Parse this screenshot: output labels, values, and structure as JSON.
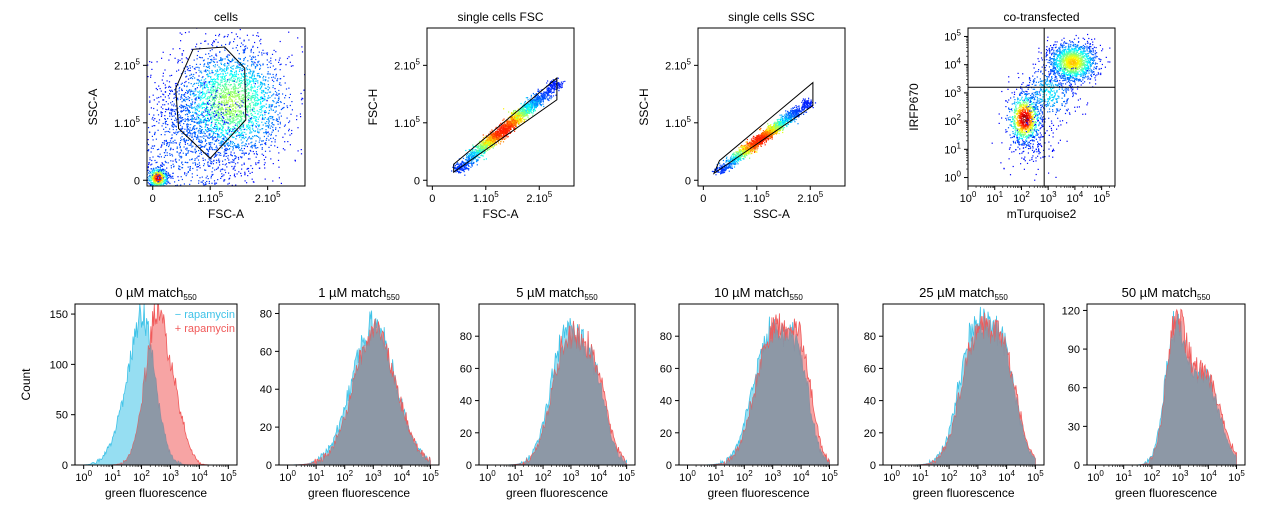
{
  "chart_data": [
    {
      "id": "cells",
      "type": "scatter",
      "title": "cells",
      "xlabel": "FSC-A",
      "ylabel": "SSC-A",
      "xlim": [
        -10000,
        265000
      ],
      "ylim": [
        -10000,
        265000
      ],
      "xticks": [
        {
          "v": 0,
          "t": "0"
        },
        {
          "v": 100000,
          "t": "1.10",
          "s": "5"
        },
        {
          "v": 200000,
          "t": "2.10",
          "s": "5"
        }
      ],
      "yticks": [
        {
          "v": 0,
          "t": "0"
        },
        {
          "v": 100000,
          "t": "1.10",
          "s": "5"
        },
        {
          "v": 200000,
          "t": "2.10",
          "s": "5"
        }
      ],
      "clusters": [
        {
          "cx": 135000,
          "cy": 135000,
          "sx": 50000,
          "sy": 50000,
          "n": 2600,
          "dense": 0.45
        },
        {
          "cx": 8000,
          "cy": 5000,
          "sx": 9000,
          "sy": 9000,
          "n": 500,
          "dense": 0.85
        },
        {
          "cx": 60000,
          "cy": 60000,
          "sx": 60000,
          "sy": 70000,
          "n": 1200,
          "dense": 0.1
        }
      ],
      "gate": [
        [
          40000,
          160000
        ],
        [
          70000,
          228000
        ],
        [
          125000,
          232000
        ],
        [
          160000,
          195000
        ],
        [
          162000,
          105000
        ],
        [
          100000,
          38000
        ],
        [
          45000,
          90000
        ]
      ]
    },
    {
      "id": "single-fsc",
      "type": "scatter",
      "title": "single cells FSC",
      "xlabel": "FSC-A",
      "ylabel": "FSC-H",
      "xlim": [
        -10000,
        265000
      ],
      "ylim": [
        -10000,
        265000
      ],
      "xticks": [
        {
          "v": 0,
          "t": "0"
        },
        {
          "v": 100000,
          "t": "1.10",
          "s": "5"
        },
        {
          "v": 200000,
          "t": "2.10",
          "s": "5"
        }
      ],
      "yticks": [
        {
          "v": 0,
          "t": "0"
        },
        {
          "v": 100000,
          "t": "1.10",
          "s": "5"
        },
        {
          "v": 200000,
          "t": "2.10",
          "s": "5"
        }
      ],
      "diagonal": {
        "x0": 50000,
        "x1": 230000,
        "y0": 22000,
        "y1": 168000,
        "spread": 7000,
        "n": 2200
      },
      "gate": [
        [
          40000,
          28000
        ],
        [
          233000,
          178000
        ],
        [
          233000,
          140000
        ],
        [
          40000,
          14000
        ]
      ]
    },
    {
      "id": "single-ssc",
      "type": "scatter",
      "title": "single cells SSC",
      "xlabel": "SSC-A",
      "ylabel": "SSC-H",
      "xlim": [
        -10000,
        265000
      ],
      "ylim": [
        -10000,
        265000
      ],
      "xticks": [
        {
          "v": 0,
          "t": "0"
        },
        {
          "v": 100000,
          "t": "1.10",
          "s": "5"
        },
        {
          "v": 200000,
          "t": "2.10",
          "s": "5"
        }
      ],
      "yticks": [
        {
          "v": 0,
          "t": "0"
        },
        {
          "v": 100000,
          "t": "1.10",
          "s": "5"
        },
        {
          "v": 200000,
          "t": "2.10",
          "s": "5"
        }
      ],
      "diagonal": {
        "x0": 30000,
        "x1": 195000,
        "y0": 18000,
        "y1": 135000,
        "spread": 6000,
        "n": 1800
      },
      "gate": [
        [
          20000,
          12000
        ],
        [
          205000,
          130000
        ],
        [
          205000,
          170000
        ],
        [
          30000,
          34000
        ]
      ]
    },
    {
      "id": "co-transfected",
      "type": "scatter",
      "title": "co-transfected",
      "xlabel": "mTurquoise2",
      "ylabel": "IRFP670",
      "xscale": "log",
      "yscale": "log",
      "xlim": [
        0,
        5.5
      ],
      "ylim": [
        -0.3,
        5.3
      ],
      "xticks": [
        {
          "v": 0,
          "t": "10",
          "s": "0"
        },
        {
          "v": 1,
          "t": "10",
          "s": "1"
        },
        {
          "v": 2,
          "t": "10",
          "s": "2"
        },
        {
          "v": 3,
          "t": "10",
          "s": "3"
        },
        {
          "v": 4,
          "t": "10",
          "s": "4"
        },
        {
          "v": 5,
          "t": "10",
          "s": "5"
        }
      ],
      "yticks": [
        {
          "v": 0,
          "t": "10",
          "s": "0"
        },
        {
          "v": 1,
          "t": "10",
          "s": "1"
        },
        {
          "v": 2,
          "t": "10",
          "s": "2"
        },
        {
          "v": 3,
          "t": "10",
          "s": "3"
        },
        {
          "v": 4,
          "t": "10",
          "s": "4"
        },
        {
          "v": 5,
          "t": "10",
          "s": "5"
        }
      ],
      "clusters": [
        {
          "cx": 2.1,
          "cy": 2.1,
          "sx": 0.3,
          "sy": 0.45,
          "n": 900,
          "dense": 0.9
        },
        {
          "cx": 3.9,
          "cy": 4.1,
          "sx": 0.45,
          "sy": 0.35,
          "n": 1400,
          "dense": 0.6
        },
        {
          "cx": 3.0,
          "cy": 3.0,
          "sx": 0.5,
          "sy": 0.5,
          "n": 400,
          "dense": 0.25
        },
        {
          "cx": 2.4,
          "cy": 1.2,
          "sx": 0.5,
          "sy": 0.5,
          "n": 150,
          "dense": 0.05
        }
      ],
      "quadrant": {
        "x": 2.85,
        "y": 3.2
      }
    },
    {
      "id": "hist-0",
      "type": "area",
      "title": "0 µM match",
      "title_sub": "550",
      "xlabel": "green fluorescence",
      "ylabel": "Count",
      "xscale": "log",
      "xlim": [
        -0.3,
        5.3
      ],
      "ylim": [
        0,
        160
      ],
      "xticks": [
        {
          "v": 0,
          "t": "10",
          "s": "0"
        },
        {
          "v": 1,
          "t": "10",
          "s": "1"
        },
        {
          "v": 2,
          "t": "10",
          "s": "2"
        },
        {
          "v": 3,
          "t": "10",
          "s": "3"
        },
        {
          "v": 4,
          "t": "10",
          "s": "4"
        },
        {
          "v": 5,
          "t": "10",
          "s": "5"
        }
      ],
      "yticks": [
        {
          "v": 0,
          "t": "0"
        },
        {
          "v": 50,
          "t": "50"
        },
        {
          "v": 100,
          "t": "100"
        },
        {
          "v": 150,
          "t": "150"
        }
      ],
      "legend": {
        "minus": "− rapamycin",
        "plus": "+ rapamycin"
      },
      "series": [
        {
          "name": "− rapamycin",
          "color": "#3fc3e8",
          "peaks": [
            {
              "mu": 2.05,
              "sig": 0.42,
              "h": 145
            },
            {
              "mu": 1.3,
              "sig": 0.4,
              "h": 28
            }
          ]
        },
        {
          "name": "+ rapamycin",
          "color": "#f05a5a",
          "peaks": [
            {
              "mu": 2.55,
              "sig": 0.42,
              "h": 150
            },
            {
              "mu": 3.3,
              "sig": 0.3,
              "h": 30
            }
          ]
        }
      ]
    },
    {
      "id": "hist-1",
      "type": "area",
      "title": "1 µM match",
      "title_sub": "550",
      "xlabel": "green fluorescence",
      "xscale": "log",
      "xlim": [
        -0.3,
        5.3
      ],
      "ylim": [
        0,
        85
      ],
      "xticks": [
        {
          "v": 0,
          "t": "10",
          "s": "0"
        },
        {
          "v": 1,
          "t": "10",
          "s": "1"
        },
        {
          "v": 2,
          "t": "10",
          "s": "2"
        },
        {
          "v": 3,
          "t": "10",
          "s": "3"
        },
        {
          "v": 4,
          "t": "10",
          "s": "4"
        },
        {
          "v": 5,
          "t": "10",
          "s": "5"
        }
      ],
      "yticks": [
        {
          "v": 0,
          "t": "0"
        },
        {
          "v": 20,
          "t": "20"
        },
        {
          "v": 40,
          "t": "40"
        },
        {
          "v": 60,
          "t": "60"
        },
        {
          "v": 80,
          "t": "80"
        }
      ],
      "series": [
        {
          "color": "#3fc3e8",
          "peaks": [
            {
              "mu": 3.0,
              "sig": 0.75,
              "h": 74
            }
          ]
        },
        {
          "color": "#f05a5a",
          "peaks": [
            {
              "mu": 3.05,
              "sig": 0.75,
              "h": 70
            }
          ]
        }
      ]
    },
    {
      "id": "hist-5",
      "type": "area",
      "title": "5 µM match",
      "title_sub": "550",
      "xlabel": "green fluorescence",
      "xscale": "log",
      "xlim": [
        -0.3,
        5.3
      ],
      "ylim": [
        0,
        100
      ],
      "xticks": [
        {
          "v": 0,
          "t": "10",
          "s": "0"
        },
        {
          "v": 1,
          "t": "10",
          "s": "1"
        },
        {
          "v": 2,
          "t": "10",
          "s": "2"
        },
        {
          "v": 3,
          "t": "10",
          "s": "3"
        },
        {
          "v": 4,
          "t": "10",
          "s": "4"
        },
        {
          "v": 5,
          "t": "10",
          "s": "5"
        }
      ],
      "yticks": [
        {
          "v": 0,
          "t": "0"
        },
        {
          "v": 20,
          "t": "20"
        },
        {
          "v": 40,
          "t": "40"
        },
        {
          "v": 60,
          "t": "60"
        },
        {
          "v": 80,
          "t": "80"
        }
      ],
      "series": [
        {
          "color": "#3fc3e8",
          "peaks": [
            {
              "mu": 2.8,
              "sig": 0.55,
              "h": 78
            },
            {
              "mu": 3.8,
              "sig": 0.45,
              "h": 50
            }
          ]
        },
        {
          "color": "#f05a5a",
          "peaks": [
            {
              "mu": 2.85,
              "sig": 0.55,
              "h": 75
            },
            {
              "mu": 3.85,
              "sig": 0.45,
              "h": 52
            }
          ]
        }
      ]
    },
    {
      "id": "hist-10",
      "type": "area",
      "title": "10 µM match",
      "title_sub": "550",
      "xlabel": "green fluorescence",
      "xscale": "log",
      "xlim": [
        -0.3,
        5.3
      ],
      "ylim": [
        0,
        100
      ],
      "xticks": [
        {
          "v": 0,
          "t": "10",
          "s": "0"
        },
        {
          "v": 1,
          "t": "10",
          "s": "1"
        },
        {
          "v": 2,
          "t": "10",
          "s": "2"
        },
        {
          "v": 3,
          "t": "10",
          "s": "3"
        },
        {
          "v": 4,
          "t": "10",
          "s": "4"
        },
        {
          "v": 5,
          "t": "10",
          "s": "5"
        }
      ],
      "yticks": [
        {
          "v": 0,
          "t": "0"
        },
        {
          "v": 20,
          "t": "20"
        },
        {
          "v": 40,
          "t": "40"
        },
        {
          "v": 60,
          "t": "60"
        },
        {
          "v": 80,
          "t": "80"
        }
      ],
      "series": [
        {
          "color": "#3fc3e8",
          "peaks": [
            {
              "mu": 2.9,
              "sig": 0.6,
              "h": 80
            },
            {
              "mu": 3.9,
              "sig": 0.4,
              "h": 55
            }
          ]
        },
        {
          "color": "#f05a5a",
          "peaks": [
            {
              "mu": 3.0,
              "sig": 0.6,
              "h": 82
            },
            {
              "mu": 4.0,
              "sig": 0.4,
              "h": 58
            }
          ]
        }
      ]
    },
    {
      "id": "hist-25",
      "type": "area",
      "title": "25 µM match",
      "title_sub": "550",
      "xlabel": "green fluorescence",
      "xscale": "log",
      "xlim": [
        -0.3,
        5.3
      ],
      "ylim": [
        0,
        100
      ],
      "xticks": [
        {
          "v": 0,
          "t": "10",
          "s": "0"
        },
        {
          "v": 1,
          "t": "10",
          "s": "1"
        },
        {
          "v": 2,
          "t": "10",
          "s": "2"
        },
        {
          "v": 3,
          "t": "10",
          "s": "3"
        },
        {
          "v": 4,
          "t": "10",
          "s": "4"
        },
        {
          "v": 5,
          "t": "10",
          "s": "5"
        }
      ],
      "yticks": [
        {
          "v": 0,
          "t": "0"
        },
        {
          "v": 20,
          "t": "20"
        },
        {
          "v": 40,
          "t": "40"
        },
        {
          "v": 60,
          "t": "60"
        },
        {
          "v": 80,
          "t": "80"
        }
      ],
      "series": [
        {
          "color": "#3fc3e8",
          "peaks": [
            {
              "mu": 2.9,
              "sig": 0.55,
              "h": 82
            },
            {
              "mu": 3.9,
              "sig": 0.45,
              "h": 60
            }
          ]
        },
        {
          "color": "#f05a5a",
          "peaks": [
            {
              "mu": 2.95,
              "sig": 0.55,
              "h": 78
            },
            {
              "mu": 3.95,
              "sig": 0.45,
              "h": 58
            }
          ]
        }
      ]
    },
    {
      "id": "hist-50",
      "type": "area",
      "title": "50 µM  match",
      "title_sub": "550",
      "xlabel": "green fluorescence",
      "xscale": "log",
      "xlim": [
        -0.3,
        5.3
      ],
      "ylim": [
        0,
        125
      ],
      "xticks": [
        {
          "v": 0,
          "t": "10",
          "s": "0"
        },
        {
          "v": 1,
          "t": "10",
          "s": "1"
        },
        {
          "v": 2,
          "t": "10",
          "s": "2"
        },
        {
          "v": 3,
          "t": "10",
          "s": "3"
        },
        {
          "v": 4,
          "t": "10",
          "s": "4"
        },
        {
          "v": 5,
          "t": "10",
          "s": "5"
        }
      ],
      "yticks": [
        {
          "v": 0,
          "t": "0"
        },
        {
          "v": 30,
          "t": "30"
        },
        {
          "v": 60,
          "t": "60"
        },
        {
          "v": 90,
          "t": "90"
        },
        {
          "v": 120,
          "t": "120"
        }
      ],
      "series": [
        {
          "color": "#3fc3e8",
          "peaks": [
            {
              "mu": 2.8,
              "sig": 0.35,
              "h": 95
            },
            {
              "mu": 3.8,
              "sig": 0.55,
              "h": 70
            }
          ]
        },
        {
          "color": "#f05a5a",
          "peaks": [
            {
              "mu": 2.85,
              "sig": 0.35,
              "h": 100
            },
            {
              "mu": 3.85,
              "sig": 0.55,
              "h": 72
            }
          ]
        }
      ]
    }
  ]
}
